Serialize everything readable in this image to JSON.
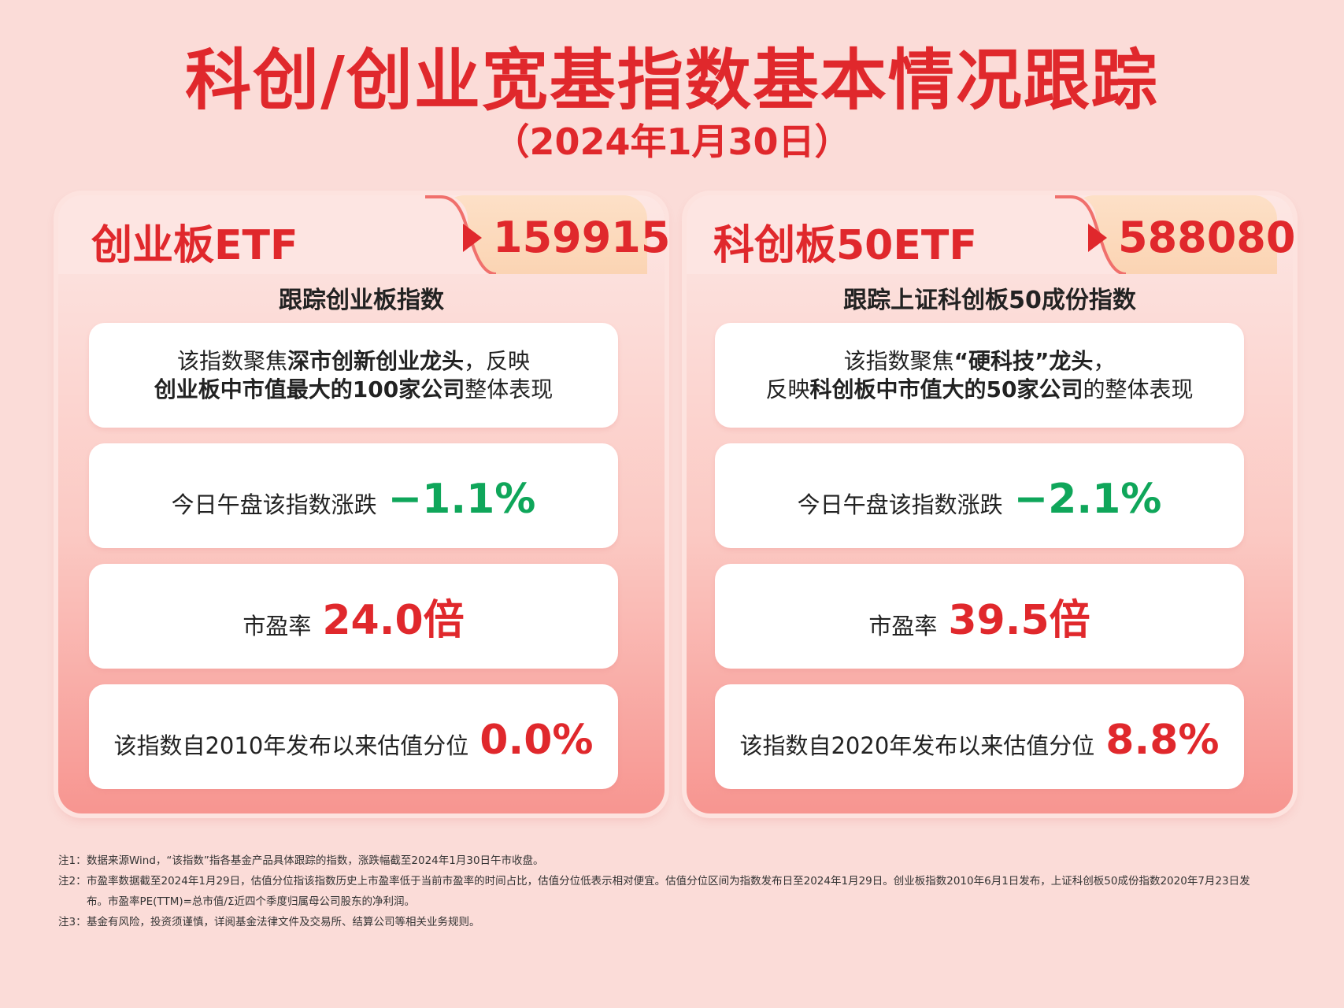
{
  "title": "科创/创业宽基指数基本情况跟踪",
  "subtitle": "（2024年1月30日）",
  "panels": [
    {
      "name": "创业板ETF",
      "code": "159915",
      "tracking": "跟踪创业板指数",
      "desc_line1_pre": "该指数聚焦",
      "desc_line1_bold": "深市创新创业龙头",
      "desc_line1_post": "，反映",
      "desc_line2_bold": "创业板中市值最大的100家公司",
      "desc_line2_post": "整体表现",
      "change_label": "今日午盘该指数涨跌",
      "change_value": "−1.1%",
      "pe_label": "市盈率",
      "pe_value": "24.0倍",
      "pct_label": "该指数自2010年发布以来估值分位",
      "pct_value": "0.0%"
    },
    {
      "name": "科创板50ETF",
      "code": "588080",
      "tracking": "跟踪上证科创板50成份指数",
      "desc_line1_pre": "该指数聚焦",
      "desc_line1_bold": "“硬科技”龙头",
      "desc_line1_post": "，",
      "desc_line2_pre": "反映",
      "desc_line2_bold": "科创板中市值大的50家公司",
      "desc_line2_post": "的整体表现",
      "change_label": "今日午盘该指数涨跌",
      "change_value": "−2.1%",
      "pe_label": "市盈率",
      "pe_value": "39.5倍",
      "pct_label": "该指数自2020年发布以来估值分位",
      "pct_value": "8.8%"
    }
  ],
  "notes": [
    {
      "key": "注1：",
      "text": "数据来源Wind，“该指数”指各基金产品具体跟踪的指数，涨跌幅截至2024年1月30日午市收盘。"
    },
    {
      "key": "注2：",
      "text": "市盈率数据截至2024年1月29日，估值分位指该指数历史上市盈率低于当前市盈率的时间占比，估值分位低表示相对便宜。估值分位区间为指数发布日至2024年1月29日。创业板指数2010年6月1日发布，上证科创板50成份指数2020年7月23日发布。市盈率PE(TTM)=总市值/Σ近四个季度归属母公司股东的净利润。"
    },
    {
      "key": "注3：",
      "text": "基金有风险，投资须谨慎，详阅基金法律文件及交易所、结算公司等相关业务规则。"
    }
  ]
}
